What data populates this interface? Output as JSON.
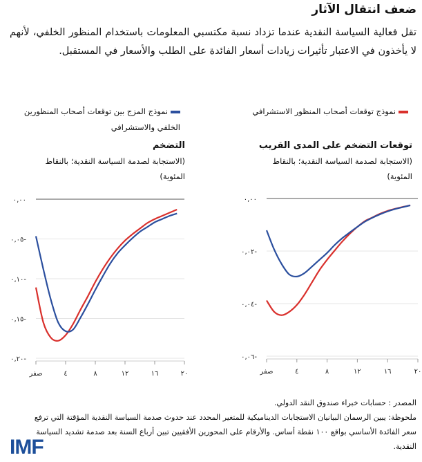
{
  "title": "ضعف انتقال الآثار",
  "intro": "تقل فعالية السياسة النقدية عندما تزداد نسبة مكتسبي المعلومات باستخدام المنظور الخلفي، لأنهم لا يأخذون في الاعتبار تأثيرات زيادات أسعار الفائدة على الطلب والأسعار في المستقبل.",
  "legend": [
    {
      "label": "نموذج توقعات أصحاب المنظور الاستشرافي",
      "color": "#d9302c"
    },
    {
      "label": "نموذج المزج بين توقعات أصحاب المنظورين الخلفي والاستشرافي",
      "color": "#2b4f9e"
    }
  ],
  "chart_data": [
    {
      "type": "line",
      "title": "توقعات التضخم على المدى القريب",
      "subtitle": "(الاستجابة لصدمة السياسة النقدية؛ بالنقاط المئوية)",
      "x": [
        0,
        1,
        2,
        3,
        4,
        5,
        6,
        7,
        8,
        9,
        10,
        11,
        12,
        13,
        14,
        15,
        16,
        17,
        18,
        19
      ],
      "xticks": [
        {
          "v": 0,
          "label": "صفر"
        },
        {
          "v": 4,
          "label": "٤"
        },
        {
          "v": 8,
          "label": "٨"
        },
        {
          "v": 12,
          "label": "١٢"
        },
        {
          "v": 16,
          "label": "١٦"
        },
        {
          "v": 20,
          "label": "٢٠"
        }
      ],
      "yticks": [
        {
          "v": 0,
          "label": "٠,٠٠"
        },
        {
          "v": -0.02,
          "label": "٠,٠٢-"
        },
        {
          "v": -0.04,
          "label": "٠,٠٤-"
        },
        {
          "v": -0.06,
          "label": "٠,٠٦-"
        }
      ],
      "xlim": [
        0,
        20
      ],
      "ylim": [
        -0.06,
        0
      ],
      "grid": true,
      "series": [
        {
          "name": "نموذج توقعات أصحاب المنظور الاستشرافي",
          "color": "#d9302c",
          "values": [
            -0.0388,
            -0.0431,
            -0.0444,
            -0.0431,
            -0.0405,
            -0.0366,
            -0.0319,
            -0.0272,
            -0.0233,
            -0.0198,
            -0.0164,
            -0.0134,
            -0.0108,
            -0.0086,
            -0.0072,
            -0.0058,
            -0.0047,
            -0.0039,
            -0.0032,
            -0.0026
          ]
        },
        {
          "name": "نموذج المزج بين توقعات أصحاب المنظورين الخلفي والاستشرافي",
          "color": "#2b4f9e",
          "values": [
            -0.0121,
            -0.0194,
            -0.025,
            -0.0289,
            -0.0297,
            -0.0284,
            -0.0259,
            -0.0233,
            -0.0207,
            -0.0177,
            -0.0151,
            -0.0129,
            -0.0108,
            -0.0088,
            -0.0073,
            -0.006,
            -0.0049,
            -0.004,
            -0.0033,
            -0.0026
          ]
        }
      ]
    },
    {
      "type": "line",
      "title": "التضخم",
      "subtitle": "(الاستجابة لصدمة السياسة النقدية؛ بالنقاط المئوية)",
      "x": [
        0,
        1,
        2,
        3,
        4,
        5,
        6,
        7,
        8,
        9,
        10,
        11,
        12,
        13,
        14,
        15,
        16,
        17,
        18,
        19
      ],
      "xticks": [
        {
          "v": 0,
          "label": "صفر"
        },
        {
          "v": 4,
          "label": "٤"
        },
        {
          "v": 8,
          "label": "٨"
        },
        {
          "v": 12,
          "label": "١٢"
        },
        {
          "v": 16,
          "label": "١٦"
        },
        {
          "v": 20,
          "label": "٢٠"
        }
      ],
      "yticks": [
        {
          "v": 0,
          "label": "٠,٠٠"
        },
        {
          "v": -0.05,
          "label": "٠,٠٥-"
        },
        {
          "v": -0.1,
          "label": "٠,١٠-"
        },
        {
          "v": -0.15,
          "label": "٠,١٥-"
        },
        {
          "v": -0.2,
          "label": "٠,٢٠-"
        }
      ],
      "xlim": [
        0,
        20
      ],
      "ylim": [
        -0.2,
        0
      ],
      "grid": true,
      "series": [
        {
          "name": "نموذج توقعات أصحاب المنظور الاستشرافي",
          "color": "#d9302c",
          "values": [
            -0.111,
            -0.155,
            -0.174,
            -0.178,
            -0.171,
            -0.157,
            -0.139,
            -0.122,
            -0.104,
            -0.088,
            -0.074,
            -0.062,
            -0.052,
            -0.044,
            -0.037,
            -0.03,
            -0.025,
            -0.021,
            -0.017,
            -0.013
          ]
        },
        {
          "name": "نموذج المزج بين توقعات أصحاب المنظورين الخلفي والاستشرافي",
          "color": "#2b4f9e",
          "values": [
            -0.0465,
            -0.088,
            -0.126,
            -0.155,
            -0.166,
            -0.164,
            -0.149,
            -0.132,
            -0.114,
            -0.097,
            -0.081,
            -0.068,
            -0.058,
            -0.049,
            -0.041,
            -0.035,
            -0.029,
            -0.025,
            -0.021,
            -0.018
          ]
        }
      ]
    }
  ],
  "notes": {
    "source": "المصدر : حسابات خبراء صندوق النقد الدولي.",
    "note": "ملحوظة: يبين الرسمان البيانيان الاستجابات الديناميكية للمتغير المحدد عند حدوث صدمة السياسة النقدية المؤقتة التي ترفع سعر الفائدة الأساسي بواقع ١٠٠ نقطة أساس. والأرقام على المحورين الأفقيين تبين أرباع السنة بعد صدمة تشديد السياسة النقدية."
  },
  "logo": "IMF"
}
